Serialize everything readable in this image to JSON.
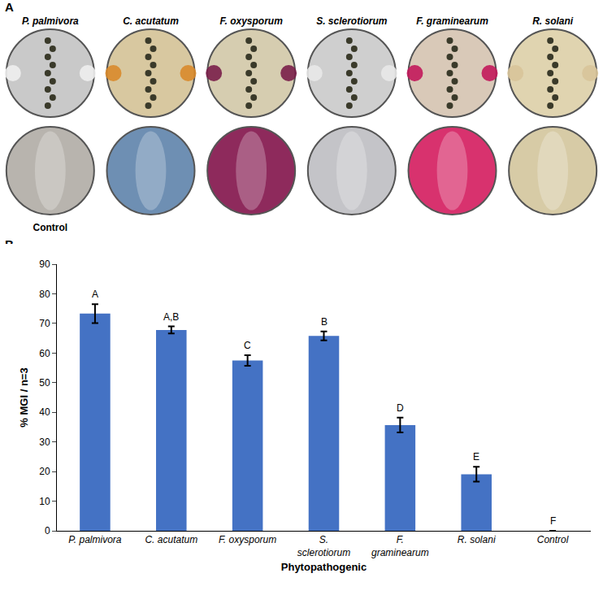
{
  "panel_a": {
    "letter": "A",
    "top_labels": [
      "P. palmivora",
      "C. acutatum",
      "F. oxysporum",
      "S. sclerotiorum",
      "F. graminearum",
      "R. solani"
    ],
    "bottom_label": "Control"
  },
  "chart_data": {
    "type": "bar",
    "letter": "B",
    "categories": [
      "P. palmivora",
      "C. acutatum",
      "F. oxysporum",
      "S. sclerotiorum",
      "F. graminearum",
      "R. solani",
      "Control"
    ],
    "values": [
      73.3,
      67.8,
      57.5,
      65.8,
      35.7,
      19.1,
      0
    ],
    "errors": [
      3.2,
      1.2,
      1.8,
      1.5,
      2.5,
      2.5,
      0
    ],
    "letters": [
      "A",
      "A,B",
      "C",
      "B",
      "D",
      "E",
      "F"
    ],
    "color": "#4472c4",
    "x_label": "Phytopathogenic",
    "y_label": "% MGI / n=3",
    "ylim": [
      0,
      90
    ],
    "yticks": [
      0,
      10,
      20,
      30,
      40,
      50,
      60,
      70,
      80,
      90
    ],
    "grid": false
  }
}
